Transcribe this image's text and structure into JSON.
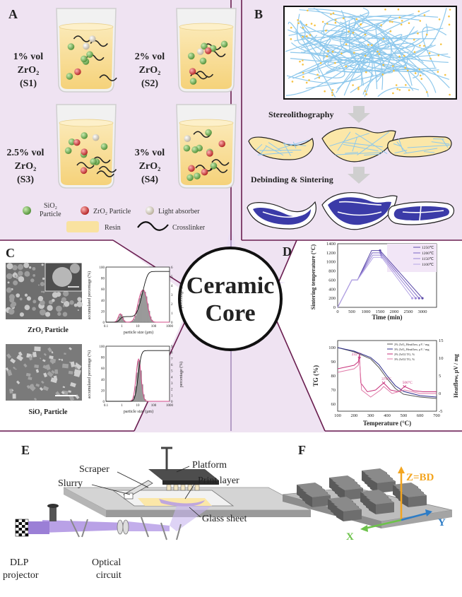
{
  "panels": {
    "A": {
      "label": "A",
      "beakers": [
        {
          "line1": "1% vol",
          "line2": "ZrO₂",
          "line3": "(S1)"
        },
        {
          "line1": "2% vol",
          "line2": "ZrO₂",
          "line3": "(S2)"
        },
        {
          "line1": "2.5% vol",
          "line2": "ZrO₂",
          "line3": "(S3)"
        },
        {
          "line1": "3% vol",
          "line2": "ZrO₂",
          "line3": "(S4)"
        }
      ],
      "legend": {
        "sio2": "SiO₂",
        "sio2_sub": "Particle",
        "zro2": "ZrO₂ Particle",
        "absorber": "Light absorber",
        "resin": "Resin",
        "crosslinker": "Crosslinker"
      }
    },
    "B": {
      "label": "B",
      "step1": "Stereolithography",
      "step2": "Debinding & Sintering"
    },
    "C": {
      "label": "C",
      "zro2_caption": "ZrO₂ Particle",
      "sio2_caption": "SiO₂ Particle",
      "hist": {
        "ylabel_left": "accumulated percentage (%)",
        "ylabel_right": "percentage (%)",
        "xlabel_top": "particle size (μm)",
        "xlabel_bottom": "particle size (μm)",
        "xticks": [
          "0.1",
          "1",
          "10",
          "100",
          "1000"
        ],
        "yticks_left": [
          "0",
          "20",
          "40",
          "60",
          "80",
          "100"
        ],
        "yticks_right_top": [
          "0",
          "1",
          "2",
          "3",
          "4",
          "5",
          "6"
        ],
        "yticks_right_bottom": [
          "0",
          "1",
          "2",
          "3",
          "4",
          "5",
          "6",
          "7",
          "8",
          "9"
        ]
      }
    },
    "center": {
      "line1": "Ceramic",
      "line2": "Core"
    },
    "D": {
      "label": "D",
      "top": {
        "ylabel": "Sintering temperature (°C)",
        "xlabel": "Time (min)",
        "xticks": [
          "0",
          "500",
          "1000",
          "1500",
          "2000",
          "2500",
          "3000"
        ],
        "yticks": [
          "0",
          "200",
          "400",
          "600",
          "800",
          "1000",
          "1200",
          "1400"
        ],
        "legend": [
          "1250℃",
          "1200℃",
          "1150℃",
          "1100℃"
        ]
      },
      "bottom": {
        "ylabel_left": "TG (%)",
        "ylabel_right": "Heatflow, μV / mg",
        "xlabel": "Temperature (°C)",
        "xticks": [
          "100",
          "200",
          "300",
          "400",
          "500",
          "600",
          "700"
        ],
        "yticks_left": [
          "60",
          "70",
          "80",
          "90",
          "100"
        ],
        "yticks_right": [
          "-5",
          "0",
          "5",
          "10",
          "15"
        ],
        "legend": [
          "2% ZrO₂ Heatflow, μV / mg",
          "3% ZrO₂ Heatflow, μV / mg",
          "2% ZrO2  TG,  %",
          "3% ZrO2  TG,  %"
        ],
        "annotations": [
          "232°C",
          "379°C",
          "506°C"
        ]
      }
    },
    "E": {
      "label": "E",
      "parts": {
        "scraper": "Scraper",
        "slurry": "Slurry",
        "platform": "Platform",
        "print_layer": "Print layer",
        "glass_sheet": "Glass sheet",
        "dlp1": "DLP",
        "dlp2": "projector",
        "optical1": "Optical",
        "optical2": "circuit"
      }
    },
    "F": {
      "label": "F",
      "axes": {
        "z": "Z=BD",
        "x": "X",
        "y": "Y"
      }
    }
  },
  "colors": {
    "bg_panel": "#efe3f2",
    "border": "#6a1e50",
    "resin": "#f9e2a0",
    "sio2": "#6aa84f",
    "zro2": "#d62d2d",
    "fiber": "#8ec8ec",
    "sintered": "#3b3ba8",
    "accent_z": "#f3a51f",
    "accent_x": "#6cc24a",
    "accent_y": "#2d7cc6"
  }
}
